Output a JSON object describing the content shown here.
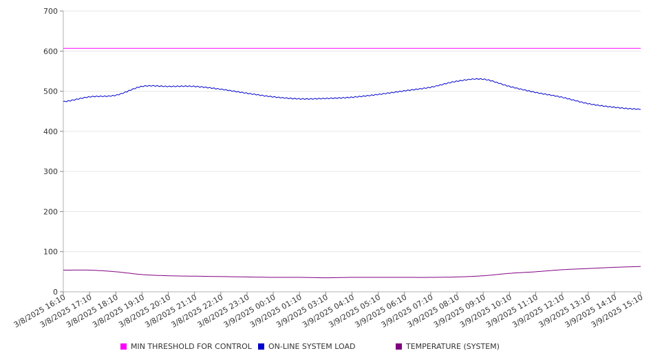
{
  "chart_data": {
    "type": "line",
    "title": "",
    "xlabel": "",
    "ylabel": "",
    "ylim": [
      0,
      700
    ],
    "yticks": [
      0,
      100,
      200,
      300,
      400,
      500,
      600,
      700
    ],
    "grid": true,
    "legend_position": "bottom",
    "x": [
      "3/8/2025 16:10",
      "3/8/2025 17:10",
      "3/8/2025 18:10",
      "3/8/2025 19:10",
      "3/8/2025 20:10",
      "3/8/2025 21:10",
      "3/8/2025 22:10",
      "3/8/2025 23:10",
      "3/9/2025 00:10",
      "3/9/2025 01:10",
      "3/9/2025 03:10",
      "3/9/2025 04:10",
      "3/9/2025 05:10",
      "3/9/2025 06:10",
      "3/9/2025 07:10",
      "3/9/2025 08:10",
      "3/9/2025 09:10",
      "3/9/2025 10:10",
      "3/9/2025 11:10",
      "3/9/2025 12:10",
      "3/9/2025 13:10",
      "3/9/2025 14:10",
      "3/9/2025 15:10"
    ],
    "series": [
      {
        "name": "MIN THRESHOLD FOR CONTROL",
        "color": "#ff00ff",
        "values": [
          607,
          607,
          607,
          607,
          607,
          607,
          607,
          607,
          607,
          607,
          607,
          607,
          607,
          607,
          607,
          607,
          607,
          607,
          607,
          607,
          607,
          607,
          607
        ]
      },
      {
        "name": "ON-LINE SYSTEM LOAD",
        "color": "#0000cc",
        "values": [
          474,
          486,
          490,
          512,
          512,
          512,
          505,
          495,
          486,
          481,
          482,
          485,
          492,
          501,
          510,
          525,
          530,
          512,
          497,
          485,
          469,
          460,
          455
        ]
      },
      {
        "name": "TEMPERATURE (SYSTEM)",
        "color": "#800080",
        "values": [
          54,
          54,
          50,
          43,
          40,
          39,
          38,
          37,
          36,
          36,
          35,
          36,
          36,
          36,
          36,
          37,
          40,
          46,
          50,
          55,
          58,
          61,
          63
        ]
      }
    ]
  }
}
